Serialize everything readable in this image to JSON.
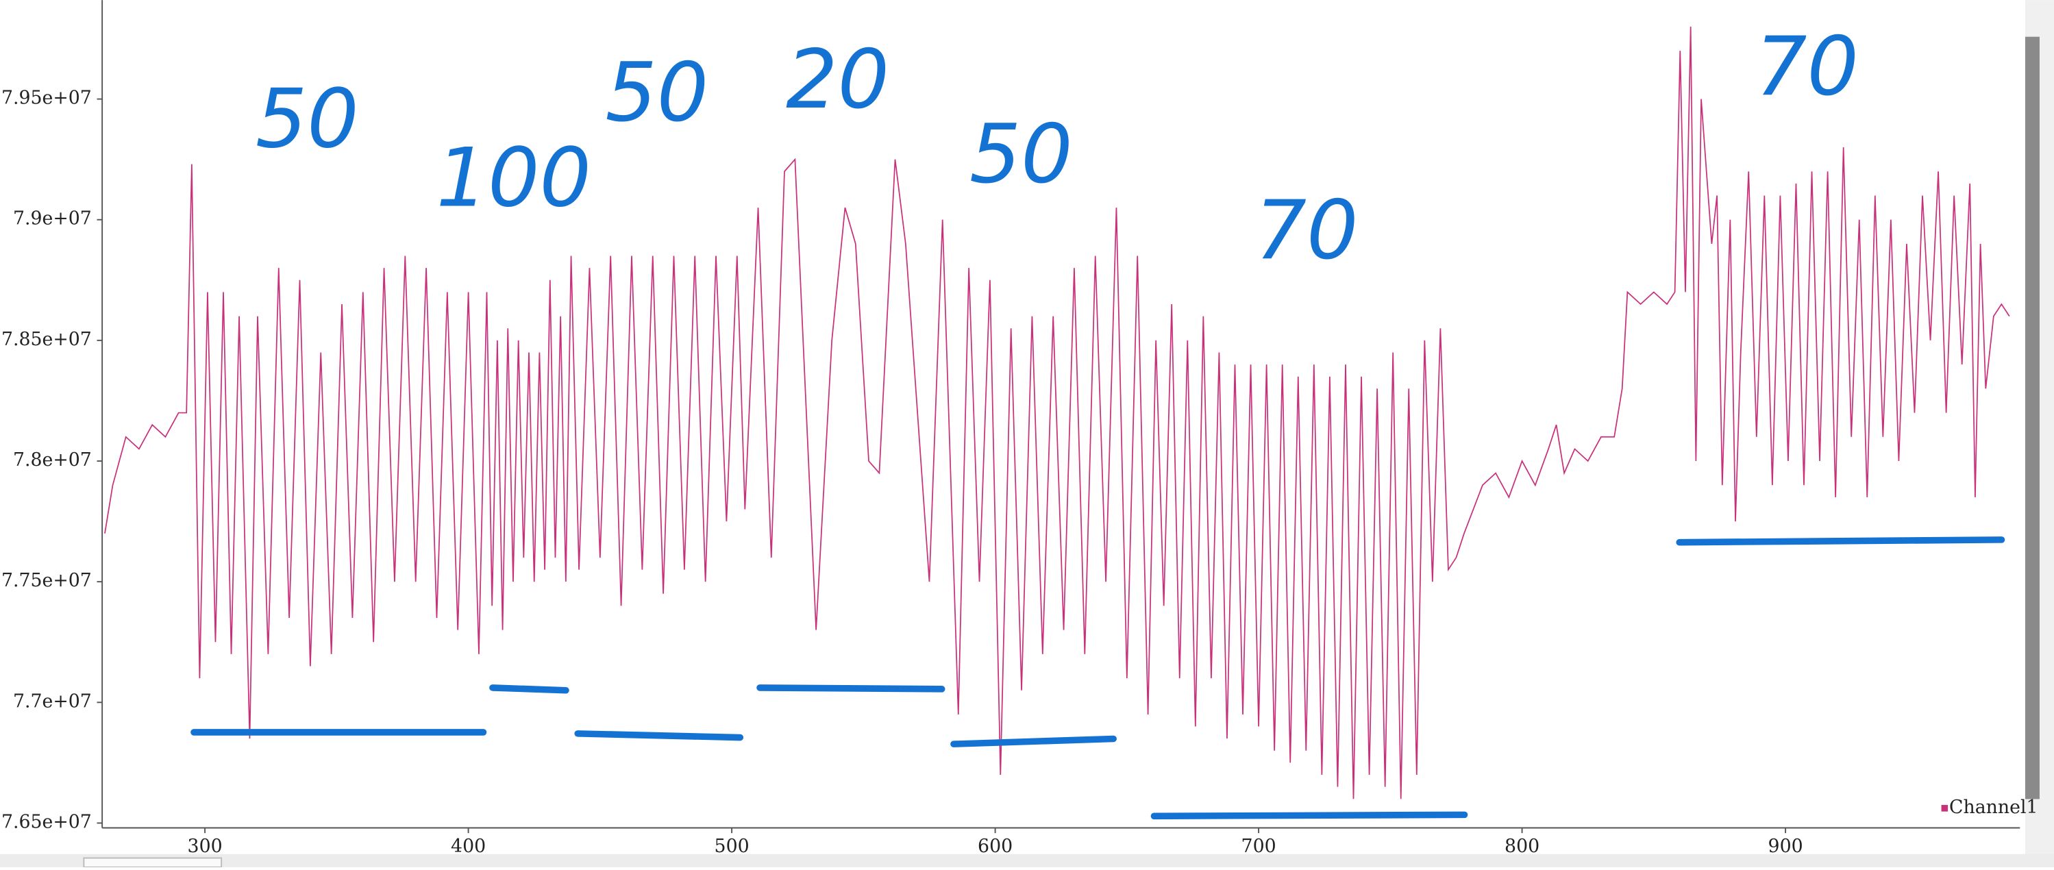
{
  "chart_data": {
    "type": "line",
    "annotations": [
      "50",
      "100",
      "50",
      "20",
      "50",
      "70",
      "70"
    ],
    "xlim": [
      261,
      989
    ],
    "xticks": [
      300,
      400,
      500,
      600,
      700,
      800,
      900
    ],
    "ylim": [
      76480000,
      79910000
    ],
    "yticks": [
      {
        "value": 76500000,
        "label": "7.65e+07"
      },
      {
        "value": 77000000,
        "label": "7.7e+07"
      },
      {
        "value": 77500000,
        "label": "7.75e+07"
      },
      {
        "value": 78000000,
        "label": "7.8e+07"
      },
      {
        "value": 78500000,
        "label": "7.85e+07"
      },
      {
        "value": 79000000,
        "label": "7.9e+07"
      },
      {
        "value": 79500000,
        "label": "7.95e+07"
      }
    ],
    "legend": "bottom-right",
    "x": [
      262,
      265,
      270,
      275,
      280,
      285,
      290,
      293,
      295,
      298,
      301,
      304,
      307,
      310,
      313,
      317,
      320,
      324,
      328,
      332,
      336,
      340,
      344,
      348,
      352,
      356,
      360,
      364,
      368,
      372,
      376,
      380,
      384,
      388,
      392,
      396,
      400,
      404,
      407,
      409,
      411,
      413,
      415,
      417,
      419,
      421,
      423,
      425,
      427,
      429,
      431,
      433,
      435,
      437,
      439,
      442,
      446,
      450,
      454,
      458,
      462,
      466,
      470,
      474,
      478,
      482,
      486,
      490,
      494,
      498,
      502,
      505,
      510,
      515,
      520,
      524,
      532,
      538,
      543,
      547,
      552,
      556,
      562,
      566,
      575,
      580,
      586,
      590,
      594,
      598,
      602,
      606,
      610,
      614,
      618,
      622,
      626,
      630,
      634,
      638,
      642,
      646,
      650,
      654,
      658,
      661,
      664,
      667,
      670,
      673,
      676,
      679,
      682,
      685,
      688,
      691,
      694,
      697,
      700,
      703,
      706,
      709,
      712,
      715,
      718,
      721,
      724,
      727,
      730,
      733,
      736,
      739,
      742,
      745,
      748,
      751,
      754,
      757,
      760,
      763,
      766,
      769,
      772,
      775,
      778,
      785,
      790,
      795,
      800,
      805,
      810,
      813,
      816,
      820,
      825,
      830,
      835,
      838,
      840,
      845,
      850,
      855,
      858,
      860,
      862,
      864,
      866,
      868,
      872,
      874,
      876,
      879,
      881,
      883,
      886,
      889,
      892,
      895,
      898,
      901,
      904,
      907,
      910,
      913,
      916,
      919,
      922,
      925,
      928,
      931,
      934,
      937,
      940,
      943,
      946,
      949,
      952,
      955,
      958,
      961,
      964,
      967,
      970,
      972,
      974,
      976,
      979,
      982,
      985
    ],
    "series": [
      {
        "name": "Channel1",
        "color": "#c8307a",
        "values": [
          77700000,
          77900000,
          78100000,
          78050000,
          78150000,
          78100000,
          78200000,
          78200000,
          79230000,
          77100000,
          78700000,
          77250000,
          78700000,
          77200000,
          78600000,
          76850000,
          78600000,
          77200000,
          78800000,
          77350000,
          78750000,
          77150000,
          78450000,
          77200000,
          78650000,
          77350000,
          78700000,
          77250000,
          78800000,
          77500000,
          78850000,
          77500000,
          78800000,
          77350000,
          78700000,
          77300000,
          78700000,
          77200000,
          78700000,
          77400000,
          78500000,
          77300000,
          78550000,
          77500000,
          78500000,
          77600000,
          78450000,
          77500000,
          78450000,
          77550000,
          78750000,
          77600000,
          78600000,
          77500000,
          78850000,
          77550000,
          78800000,
          77600000,
          78850000,
          77400000,
          78850000,
          77550000,
          78850000,
          77450000,
          78850000,
          77550000,
          78850000,
          77500000,
          78850000,
          77750000,
          78850000,
          77800000,
          79050000,
          77600000,
          79200000,
          79250000,
          77300000,
          78500000,
          79050000,
          78900000,
          78000000,
          77950000,
          79250000,
          78900000,
          77500000,
          79000000,
          76950000,
          78800000,
          77500000,
          78750000,
          76700000,
          78550000,
          77050000,
          78600000,
          77200000,
          78600000,
          77300000,
          78800000,
          77200000,
          78850000,
          77500000,
          79050000,
          77100000,
          78850000,
          76950000,
          78500000,
          77400000,
          78650000,
          77100000,
          78500000,
          76900000,
          78600000,
          77100000,
          78450000,
          76850000,
          78400000,
          76950000,
          78400000,
          76900000,
          78400000,
          76800000,
          78400000,
          76750000,
          78350000,
          76800000,
          78400000,
          76700000,
          78350000,
          76650000,
          78400000,
          76600000,
          78350000,
          76700000,
          78300000,
          76650000,
          78450000,
          76600000,
          78300000,
          76700000,
          78500000,
          77500000,
          78550000,
          77550000,
          77600000,
          77700000,
          77900000,
          77950000,
          77850000,
          78000000,
          77900000,
          78050000,
          78150000,
          77950000,
          78050000,
          78000000,
          78100000,
          78100000,
          78300000,
          78700000,
          78650000,
          78700000,
          78650000,
          78700000,
          79700000,
          78700000,
          79800000,
          78000000,
          79500000,
          78900000,
          79100000,
          77900000,
          79000000,
          77750000,
          78450000,
          79200000,
          78100000,
          79100000,
          77900000,
          79100000,
          78000000,
          79150000,
          77900000,
          79200000,
          78000000,
          79200000,
          77850000,
          79300000,
          78100000,
          79000000,
          77850000,
          79100000,
          78100000,
          79000000,
          78000000,
          78900000,
          78200000,
          79100000,
          78500000,
          79200000,
          78200000,
          79100000,
          78400000,
          79150000,
          77850000,
          78900000,
          78300000,
          78600000,
          78650000,
          78600000
        ]
      }
    ]
  }
}
